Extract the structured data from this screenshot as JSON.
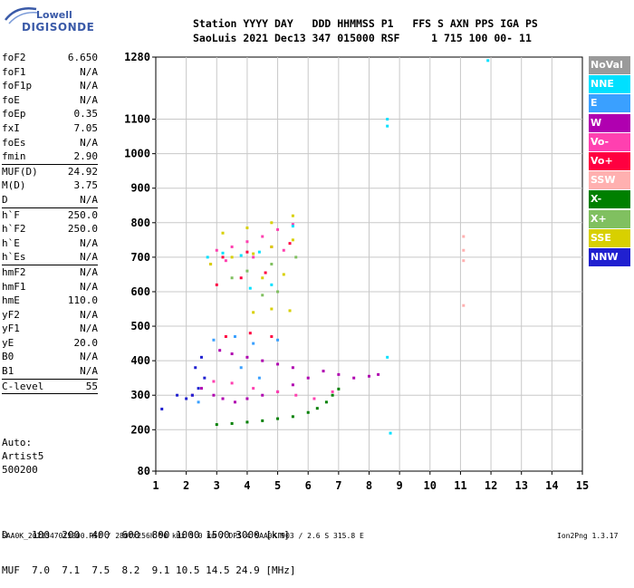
{
  "logo": {
    "top": "Lowell",
    "bottom": "DIGISONDE"
  },
  "header": {
    "line1": "Station YYYY DAY   DDD HHMMSS P1   FFS S AXN PPS IGA PS",
    "line2": "SaoLuis 2021 Dec13 347 015000 RSF     1 715 100 00- 11"
  },
  "params": [
    {
      "name": "foF2",
      "value": "6.650"
    },
    {
      "name": "foF1",
      "value": "N/A"
    },
    {
      "name": "foF1p",
      "value": "N/A"
    },
    {
      "name": "foE",
      "value": "N/A"
    },
    {
      "name": "foEp",
      "value": "0.35"
    },
    {
      "name": "fxI",
      "value": "7.05"
    },
    {
      "name": "foEs",
      "value": "N/A"
    },
    {
      "name": "fmin",
      "value": "2.90"
    },
    {
      "sep": true
    },
    {
      "name": "MUF(D)",
      "value": "24.92"
    },
    {
      "name": "M(D)",
      "value": "3.75"
    },
    {
      "name": "D",
      "value": "N/A"
    },
    {
      "sep": true
    },
    {
      "name": "h`F",
      "value": "250.0"
    },
    {
      "name": "h`F2",
      "value": "250.0"
    },
    {
      "name": "h`E",
      "value": "N/A"
    },
    {
      "name": "h`Es",
      "value": "N/A"
    },
    {
      "sep": true
    },
    {
      "name": "hmF2",
      "value": "N/A"
    },
    {
      "name": "hmF1",
      "value": "N/A"
    },
    {
      "name": "hmE",
      "value": "110.0"
    },
    {
      "name": "yF2",
      "value": "N/A"
    },
    {
      "name": "yF1",
      "value": "N/A"
    },
    {
      "name": "yE",
      "value": "20.0"
    },
    {
      "name": "B0",
      "value": "N/A"
    },
    {
      "name": "B1",
      "value": "N/A"
    },
    {
      "sep": true
    },
    {
      "name": "C-level",
      "value": "55"
    },
    {
      "sep": true
    }
  ],
  "autoscaling": [
    "Auto:",
    "Artist5",
    "500200"
  ],
  "legend": [
    {
      "label": "NoVal",
      "color": "#9a9a9a"
    },
    {
      "label": "NNE",
      "color": "#00e0ff"
    },
    {
      "label": "E",
      "color": "#3aa0ff"
    },
    {
      "label": "W",
      "color": "#b000b0"
    },
    {
      "label": "Vo-",
      "color": "#ff40b0"
    },
    {
      "label": "Vo+",
      "color": "#ff0040"
    },
    {
      "label": "SSW",
      "color": "#ffb0b0"
    },
    {
      "label": "X-",
      "color": "#008000"
    },
    {
      "label": "X+",
      "color": "#80c060"
    },
    {
      "label": "SSE",
      "color": "#d8d000"
    },
    {
      "label": "NNW",
      "color": "#2020d0"
    }
  ],
  "dm_table": {
    "d_line": "D    100  200  400  600  800 1000 1500 3000 [km]",
    "muf_line": "MUF  7.0  7.1  7.5  8.2  9.1 10.5 14.5 24.9 [MHz]"
  },
  "footer": {
    "left": "SAA0K_2021347015000.RSF / 280fx256h 50 kHz 5.0 km / DPS-4 SAA0K 903 / 2.6 S 315.8 E",
    "right": "Ion2Png 1.3.17"
  },
  "chart_data": {
    "type": "scatter",
    "title": "",
    "xlabel": "",
    "ylabel": "",
    "xlim": [
      1,
      15
    ],
    "ylim": [
      80,
      1280
    ],
    "x_ticks": [
      1,
      2,
      3,
      4,
      5,
      6,
      7,
      8,
      9,
      10,
      11,
      12,
      13,
      14,
      15
    ],
    "y_ticks": [
      80,
      200,
      300,
      400,
      500,
      600,
      700,
      800,
      900,
      1000,
      1100,
      1280
    ],
    "grid": true,
    "series": [
      {
        "name": "X-",
        "color": "#008000",
        "points": [
          [
            3.0,
            215
          ],
          [
            3.5,
            218
          ],
          [
            4.0,
            222
          ],
          [
            4.5,
            226
          ],
          [
            5.0,
            232
          ],
          [
            5.5,
            238
          ],
          [
            6.0,
            250
          ],
          [
            6.3,
            262
          ],
          [
            6.6,
            280
          ],
          [
            6.8,
            300
          ],
          [
            7.0,
            318
          ]
        ]
      },
      {
        "name": "W",
        "color": "#b000b0",
        "points": [
          [
            2.9,
            300
          ],
          [
            3.2,
            290
          ],
          [
            3.6,
            280
          ],
          [
            4.0,
            290
          ],
          [
            4.5,
            300
          ],
          [
            5.0,
            310
          ],
          [
            5.5,
            330
          ],
          [
            6.0,
            350
          ],
          [
            6.5,
            370
          ],
          [
            7.0,
            360
          ],
          [
            7.5,
            350
          ],
          [
            8.0,
            355
          ],
          [
            8.3,
            360
          ],
          [
            3.1,
            430
          ],
          [
            3.5,
            420
          ],
          [
            4.0,
            410
          ],
          [
            4.5,
            400
          ],
          [
            5.0,
            390
          ],
          [
            5.5,
            380
          ],
          [
            2.5,
            320
          ],
          [
            2.2,
            300
          ]
        ]
      },
      {
        "name": "Vo-",
        "color": "#ff40b0",
        "points": [
          [
            3.0,
            720
          ],
          [
            3.5,
            730
          ],
          [
            4.0,
            745
          ],
          [
            4.5,
            760
          ],
          [
            5.0,
            780
          ],
          [
            5.5,
            795
          ],
          [
            3.3,
            690
          ],
          [
            4.2,
            700
          ],
          [
            5.2,
            720
          ],
          [
            2.9,
            340
          ],
          [
            3.5,
            335
          ],
          [
            4.2,
            320
          ],
          [
            5.0,
            310
          ],
          [
            5.6,
            300
          ],
          [
            6.2,
            290
          ],
          [
            6.8,
            310
          ]
        ]
      },
      {
        "name": "Vo+",
        "color": "#ff0040",
        "points": [
          [
            2.8,
            680
          ],
          [
            3.2,
            700
          ],
          [
            4.0,
            715
          ],
          [
            4.8,
            730
          ],
          [
            5.4,
            740
          ],
          [
            3.0,
            620
          ],
          [
            3.8,
            640
          ],
          [
            4.6,
            655
          ],
          [
            3.3,
            470
          ],
          [
            4.1,
            480
          ],
          [
            4.8,
            470
          ]
        ]
      },
      {
        "name": "SSE",
        "color": "#d8d000",
        "points": [
          [
            2.8,
            680
          ],
          [
            3.5,
            700
          ],
          [
            4.2,
            710
          ],
          [
            4.8,
            730
          ],
          [
            5.5,
            750
          ],
          [
            3.2,
            770
          ],
          [
            4.0,
            785
          ],
          [
            4.8,
            800
          ],
          [
            5.5,
            820
          ],
          [
            4.5,
            640
          ],
          [
            5.2,
            650
          ],
          [
            4.2,
            540
          ],
          [
            4.8,
            550
          ],
          [
            5.4,
            545
          ]
        ]
      },
      {
        "name": "NNE",
        "color": "#00e0ff",
        "points": [
          [
            2.7,
            700
          ],
          [
            3.2,
            712
          ],
          [
            3.8,
            705
          ],
          [
            4.4,
            715
          ],
          [
            4.1,
            610
          ],
          [
            4.8,
            620
          ],
          [
            5.5,
            790
          ],
          [
            8.6,
            1100
          ],
          [
            8.6,
            1080
          ],
          [
            8.6,
            410
          ],
          [
            8.7,
            190
          ],
          [
            11.9,
            1270
          ]
        ]
      },
      {
        "name": "E",
        "color": "#3aa0ff",
        "points": [
          [
            2.9,
            460
          ],
          [
            3.6,
            470
          ],
          [
            4.2,
            450
          ],
          [
            5.0,
            460
          ],
          [
            3.8,
            380
          ],
          [
            4.4,
            350
          ],
          [
            2.4,
            280
          ]
        ]
      },
      {
        "name": "NNW",
        "color": "#2020d0",
        "points": [
          [
            2.2,
            300
          ],
          [
            2.4,
            320
          ],
          [
            2.6,
            350
          ],
          [
            2.3,
            380
          ],
          [
            2.5,
            410
          ],
          [
            1.7,
            300
          ],
          [
            2.0,
            290
          ],
          [
            1.2,
            260
          ]
        ]
      },
      {
        "name": "SSW",
        "color": "#ffb0b0",
        "points": [
          [
            11.1,
            760
          ],
          [
            11.1,
            720
          ],
          [
            11.1,
            690
          ],
          [
            11.1,
            560
          ]
        ]
      },
      {
        "name": "X+",
        "color": "#80c060",
        "points": [
          [
            3.5,
            640
          ],
          [
            4.0,
            660
          ],
          [
            4.8,
            680
          ],
          [
            5.6,
            700
          ],
          [
            4.5,
            590
          ],
          [
            5.0,
            600
          ]
        ]
      }
    ]
  }
}
